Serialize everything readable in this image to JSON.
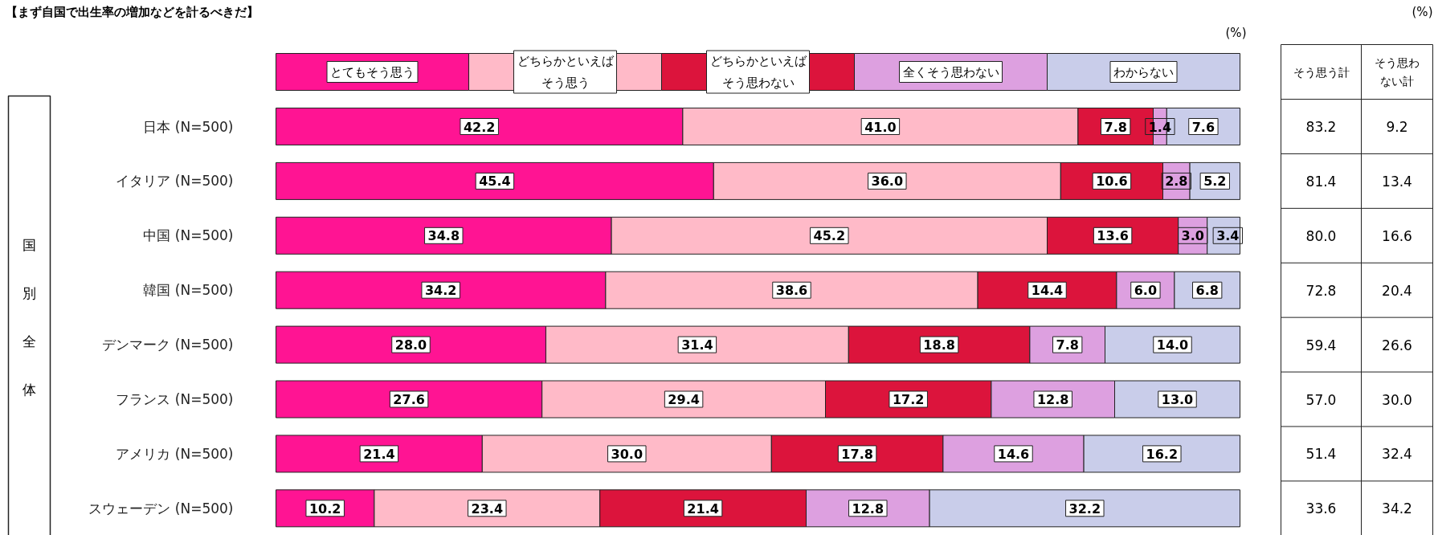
{
  "chart_data": {
    "type": "bar",
    "orientation": "horizontal",
    "stacked": true,
    "data_labels": true,
    "legend": "top",
    "grid": false,
    "tick_labels": "y",
    "title": "【まず自国で出生率の増加などを計るべきだ】",
    "categories": [
      "日本 (N=500)",
      "イタリア (N=500)",
      "中国 (N=500)",
      "韓国 (N=500)",
      "デンマーク (N=500)",
      "フランス (N=500)",
      "アメリカ (N=500)",
      "スウェーデン (N=500)"
    ],
    "series": [
      {
        "name": "とてもそう思う",
        "color": "#ff1493",
        "values": [
          42.2,
          45.4,
          34.8,
          34.2,
          28.0,
          27.6,
          21.4,
          10.2
        ],
        "value_labels": [
          "42.2",
          "45.4",
          "34.8",
          "34.2",
          "28.0",
          "27.6",
          "21.4",
          "10.2"
        ]
      },
      {
        "name": "どちらかといえばそう思う",
        "color": "#ffbac8",
        "values": [
          41.0,
          36.0,
          45.2,
          38.6,
          31.4,
          29.4,
          30.0,
          23.4
        ],
        "value_labels": [
          "41.0",
          "36.0",
          "45.2",
          "38.6",
          "31.4",
          "29.4",
          "30.0",
          "23.4"
        ]
      },
      {
        "name": "どちらかといえばそう思わない",
        "color": "#dc143c",
        "values": [
          7.8,
          10.6,
          13.6,
          14.4,
          18.8,
          17.2,
          17.8,
          21.4
        ],
        "value_labels": [
          "7.8",
          "10.6",
          "13.6",
          "14.4",
          "18.8",
          "17.2",
          "17.8",
          "21.4"
        ]
      },
      {
        "name": "全くそう思わない",
        "color": "#dda0e0",
        "values": [
          1.4,
          2.8,
          3.0,
          6.0,
          7.8,
          12.8,
          14.6,
          12.8
        ],
        "value_labels": [
          "1.4",
          "2.8",
          "3.0",
          "6.0",
          "7.8",
          "12.8",
          "14.6",
          "12.8"
        ]
      },
      {
        "name": "わからない",
        "color": "#c9cdea",
        "values": [
          7.6,
          5.2,
          3.4,
          6.8,
          14.0,
          13.0,
          16.2,
          32.2
        ],
        "value_labels": [
          "7.6",
          "5.2",
          "3.4",
          "6.8",
          "14.0",
          "13.0",
          "16.2",
          "32.2"
        ]
      }
    ],
    "annotations": [
      "(%)",
      "(%)",
      "国別全体",
      "そう思う計",
      "そう思わない計",
      "83.2",
      "9.2",
      "81.4",
      "13.4",
      "80.0",
      "16.6",
      "72.8",
      "20.4",
      "59.4",
      "26.6",
      "57.0",
      "30.0",
      "51.4",
      "32.4",
      "33.6",
      "34.2"
    ]
  }
}
